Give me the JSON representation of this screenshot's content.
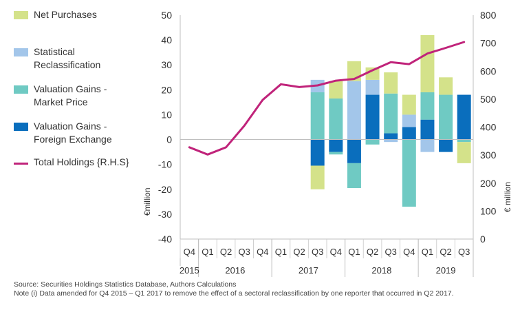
{
  "chart_data": {
    "type": "bar",
    "stacked": true,
    "categories": [
      "Q4",
      "Q1",
      "Q2",
      "Q3",
      "Q4",
      "Q1",
      "Q2",
      "Q3",
      "Q4",
      "Q1",
      "Q2",
      "Q3",
      "Q4",
      "Q1",
      "Q2",
      "Q3"
    ],
    "years": [
      {
        "label": "2015",
        "start": 0,
        "end": 0
      },
      {
        "label": "2016",
        "start": 1,
        "end": 4
      },
      {
        "label": "2017",
        "start": 5,
        "end": 8
      },
      {
        "label": "2018",
        "start": 9,
        "end": 12
      },
      {
        "label": "2019",
        "start": 13,
        "end": 15
      }
    ],
    "series": [
      {
        "name": "Net Purchases",
        "color": "#d4e28a",
        "values": [
          null,
          null,
          null,
          null,
          null,
          null,
          null,
          -9.5,
          7,
          8,
          5,
          8.5,
          8,
          23,
          7,
          -8.5
        ]
      },
      {
        "name": "Statistical Reclassification",
        "color": "#a3c6ea",
        "values": [
          null,
          null,
          null,
          null,
          null,
          null,
          null,
          5,
          0,
          0,
          6,
          0,
          5,
          0,
          0,
          0
        ]
      },
      {
        "name": "Valuation Gains - Market Price",
        "color": "#6fcac3",
        "values": [
          null,
          null,
          null,
          null,
          null,
          null,
          null,
          19,
          16.5,
          -10,
          -2,
          16,
          -27,
          11,
          18,
          -1
        ]
      },
      {
        "name": "Valuation Gains - Foreign Exchange",
        "color": "#0a6ebd",
        "values": [
          null,
          null,
          null,
          null,
          null,
          null,
          null,
          -10.5,
          -5,
          -9.5,
          18,
          2.5,
          5,
          8,
          -5,
          18
        ]
      }
    ],
    "extra_values": [
      {
        "series": "Statistical Reclassification",
        "category_index": 9,
        "value": 23.5
      },
      {
        "series": "Valuation Gains - Market Price",
        "category_index": 8,
        "value": -1
      },
      {
        "series": "Statistical Reclassification",
        "category_index": 11,
        "value": -1
      },
      {
        "series": "Statistical Reclassification",
        "category_index": 13,
        "value": -5
      }
    ],
    "line_series": {
      "name": "Total Holdings {R.H.S}",
      "color": "#c0237a",
      "axis": "right",
      "values": [
        328,
        302,
        328,
        405,
        497,
        553,
        543,
        549,
        566,
        572,
        603,
        632,
        625,
        663,
        683,
        704
      ]
    },
    "left_axis": {
      "min": -40,
      "max": 50,
      "ticks": [
        50,
        40,
        30,
        20,
        10,
        0,
        -10,
        -20,
        -30,
        -40
      ],
      "label": "€million"
    },
    "right_axis": {
      "min": 0,
      "max": 800,
      "ticks": [
        800,
        700,
        600,
        500,
        400,
        300,
        200,
        100,
        0
      ],
      "label": "€ million"
    },
    "legend": [
      {
        "label": "Net Purchases",
        "color": "#d4e28a",
        "kind": "bar"
      },
      {
        "label": "Statistical\nReclassification",
        "color": "#a3c6ea",
        "kind": "bar"
      },
      {
        "label": "Valuation Gains -\nMarket Price",
        "color": "#6fcac3",
        "kind": "bar"
      },
      {
        "label": "Valuation Gains -\nForeign Exchange",
        "color": "#0a6ebd",
        "kind": "bar"
      },
      {
        "label": "Total Holdings {R.H.S}",
        "color": "#c0237a",
        "kind": "line"
      }
    ]
  },
  "footer": {
    "source": "Source: Securities Holdings Statistics Database, Authors Calculations",
    "note": "Note (i) Data amended for Q4 2015 – Q1 2017 to remove the effect of a sectoral reclassification by one reporter that occurred in Q2 2017."
  }
}
